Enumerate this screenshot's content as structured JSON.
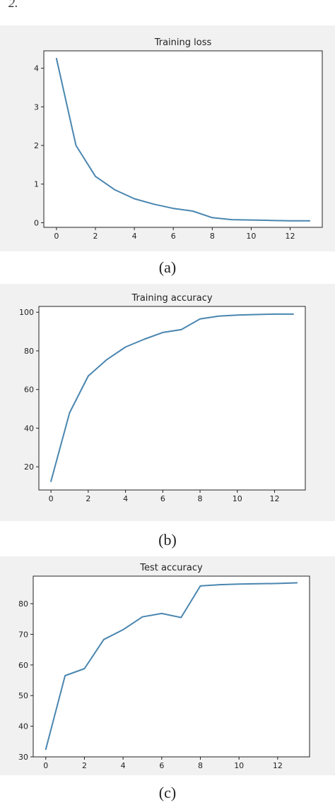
{
  "corner_text": "2.",
  "captions": [
    "(a)",
    "(b)",
    "(c)"
  ],
  "line_color": "#4a86b0",
  "chart_data": [
    {
      "type": "line",
      "title": "Training loss",
      "xlabel": "",
      "ylabel": "",
      "x": [
        0,
        1,
        2,
        3,
        4,
        5,
        6,
        7,
        8,
        9,
        10,
        11,
        12,
        13
      ],
      "series": [
        {
          "values": [
            4.25,
            2.0,
            1.2,
            0.85,
            0.62,
            0.48,
            0.37,
            0.3,
            0.13,
            0.08,
            0.07,
            0.06,
            0.05,
            0.05
          ]
        }
      ],
      "xlim": [
        -0.65,
        13.65
      ],
      "ylim": [
        -0.12,
        4.45
      ],
      "xticks": [
        0,
        2,
        4,
        6,
        8,
        10,
        12
      ],
      "yticks": [
        0,
        1,
        2,
        3,
        4
      ],
      "grid": false
    },
    {
      "type": "line",
      "title": "Training accuracy",
      "xlabel": "",
      "ylabel": "",
      "x": [
        0,
        1,
        2,
        3,
        4,
        5,
        6,
        7,
        8,
        9,
        10,
        11,
        12,
        13
      ],
      "series": [
        {
          "values": [
            12.5,
            48,
            67,
            75.5,
            82,
            86,
            89.5,
            91,
            96.5,
            98,
            98.5,
            98.8,
            99,
            99
          ]
        }
      ],
      "xlim": [
        -0.65,
        13.65
      ],
      "ylim": [
        8,
        103
      ],
      "xticks": [
        0,
        2,
        4,
        6,
        8,
        10,
        12
      ],
      "yticks": [
        20,
        40,
        60,
        80,
        100
      ],
      "grid": false
    },
    {
      "type": "line",
      "title": "Test accuracy",
      "xlabel": "",
      "ylabel": "",
      "x": [
        0,
        1,
        2,
        3,
        4,
        5,
        6,
        7,
        8,
        9,
        10,
        11,
        12,
        13
      ],
      "series": [
        {
          "values": [
            32.5,
            56.5,
            58.8,
            68.3,
            71.5,
            75.7,
            76.8,
            75.5,
            85.8,
            86.2,
            86.4,
            86.5,
            86.6,
            86.8
          ]
        }
      ],
      "xlim": [
        -0.65,
        13.65
      ],
      "ylim": [
        30,
        89
      ],
      "xticks": [
        0,
        2,
        4,
        6,
        8,
        10,
        12
      ],
      "yticks": [
        30,
        40,
        50,
        60,
        70,
        80
      ],
      "grid": false
    }
  ]
}
